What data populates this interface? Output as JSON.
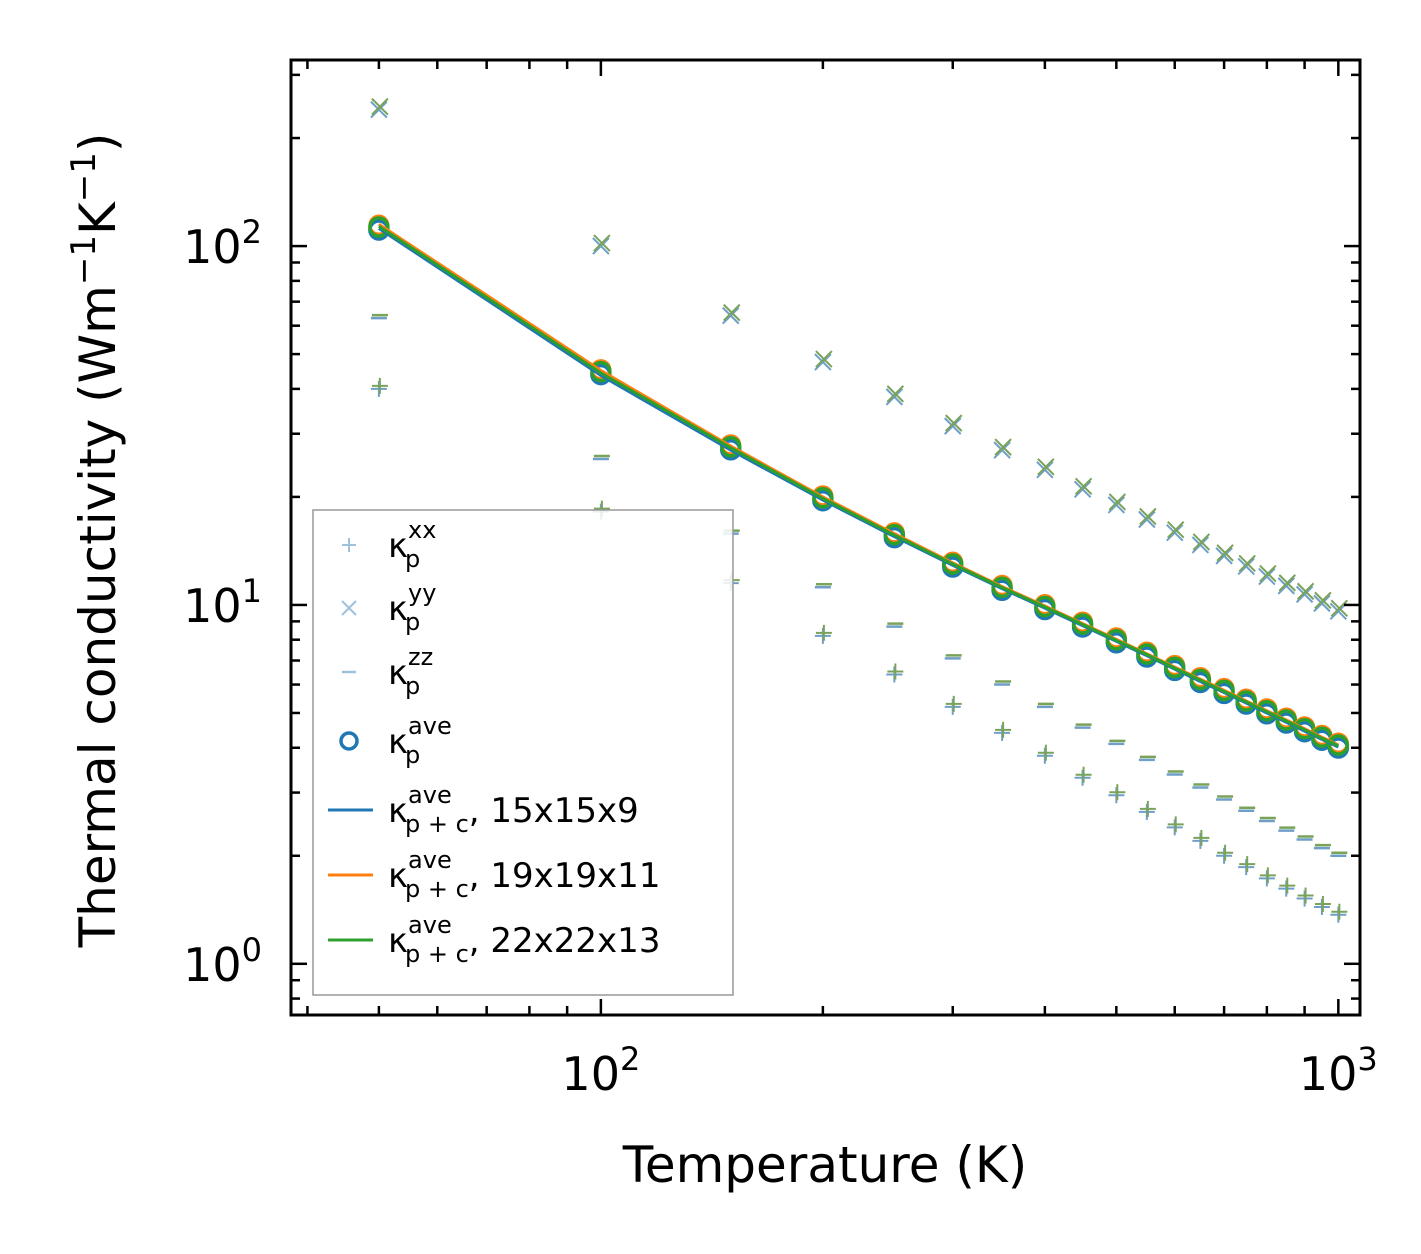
{
  "chart_data": {
    "type": "scatter",
    "xscale": "log",
    "yscale": "log",
    "xlabel": "Temperature (K)",
    "ylabel": {
      "prefix": "Thermal conductivity (Wm",
      "exp1": "−1",
      "mid": "K",
      "exp2": "−1",
      "suffix": ")"
    },
    "xlim": [
      38,
      1070
    ],
    "ylim": [
      0.72,
      330
    ],
    "xticks": [
      {
        "base": "10",
        "exp": "2",
        "value": 100
      },
      {
        "base": "10",
        "exp": "3",
        "value": 1000
      }
    ],
    "yticks": [
      {
        "base": "10",
        "exp": "0",
        "value": 1
      },
      {
        "base": "10",
        "exp": "1",
        "value": 10
      },
      {
        "base": "10",
        "exp": "2",
        "value": 100
      }
    ],
    "x": [
      50,
      100,
      150,
      200,
      250,
      300,
      350,
      400,
      450,
      500,
      550,
      600,
      650,
      700,
      750,
      800,
      850,
      900,
      950,
      1000
    ],
    "series": [
      {
        "name": "kxx",
        "marker": "plus",
        "values": [
          40,
          18.2,
          11.5,
          8.2,
          6.4,
          5.2,
          4.4,
          3.8,
          3.3,
          2.95,
          2.65,
          2.4,
          2.2,
          2.0,
          1.86,
          1.73,
          1.62,
          1.52,
          1.44,
          1.37
        ]
      },
      {
        "name": "kyy",
        "marker": "x",
        "values": [
          240,
          100,
          64,
          47.5,
          38,
          31.5,
          27,
          23.8,
          21,
          19,
          17.3,
          15.9,
          14.7,
          13.7,
          12.8,
          12.0,
          11.3,
          10.7,
          10.1,
          9.6
        ]
      },
      {
        "name": "kzz",
        "marker": "dash",
        "values": [
          63,
          25.5,
          15.8,
          11.2,
          8.7,
          7.1,
          6.0,
          5.2,
          4.55,
          4.1,
          3.7,
          3.37,
          3.1,
          2.87,
          2.67,
          2.5,
          2.35,
          2.22,
          2.1,
          2.0
        ]
      },
      {
        "name": "kave_p",
        "marker": "circle",
        "values": [
          113,
          44.7,
          27.6,
          19.9,
          15.7,
          13.0,
          11.2,
          9.9,
          8.85,
          8.0,
          7.3,
          6.7,
          6.2,
          5.78,
          5.4,
          5.07,
          4.78,
          4.52,
          4.28,
          4.07
        ]
      },
      {
        "name": "kave_pc_15",
        "marker": "line",
        "values": [
          112,
          43.6,
          27.0,
          19.6,
          15.5,
          12.9,
          11.1,
          9.8,
          8.75,
          7.92,
          7.22,
          6.62,
          6.12,
          5.7,
          5.33,
          5.0,
          4.71,
          4.45,
          4.22,
          4.02
        ]
      },
      {
        "name": "kave_pc_19",
        "marker": "line",
        "values": [
          115,
          45.0,
          27.7,
          20.0,
          15.8,
          13.1,
          11.25,
          9.93,
          8.87,
          8.02,
          7.31,
          6.71,
          6.21,
          5.78,
          5.4,
          5.07,
          4.78,
          4.52,
          4.28,
          4.07
        ]
      },
      {
        "name": "kave_pc_22",
        "marker": "line",
        "values": [
          113.5,
          44.3,
          27.4,
          19.8,
          15.65,
          13.0,
          11.18,
          9.87,
          8.82,
          7.97,
          7.27,
          6.67,
          6.17,
          5.74,
          5.37,
          5.04,
          4.75,
          4.49,
          4.25,
          4.05
        ]
      }
    ],
    "legend": {
      "placement": "lower-left",
      "entries": [
        {
          "base": "κ",
          "sup": "xx",
          "sub": "p",
          "tail": ""
        },
        {
          "base": "κ",
          "sup": "yy",
          "sub": "p",
          "tail": ""
        },
        {
          "base": "κ",
          "sup": "zz",
          "sub": "p",
          "tail": ""
        },
        {
          "base": "κ",
          "sup": "ave",
          "sub": "p",
          "tail": ""
        },
        {
          "base": "κ",
          "sup": "ave",
          "sub": "p + c",
          "tail": ", 15x15x9"
        },
        {
          "base": "κ",
          "sup": "ave",
          "sub": "p + c",
          "tail": ", 19x19x11"
        },
        {
          "base": "κ",
          "sup": "ave",
          "sub": "p + c",
          "tail": ", 22x22x13"
        }
      ]
    },
    "colors": {
      "blue": "#1f77b4",
      "orange": "#ff7f0e",
      "green": "#2ca02c",
      "scatter_blue": "#6f9fc8",
      "scatter_green": "#7aa35a",
      "legend_light": "#9fc2dc"
    }
  }
}
